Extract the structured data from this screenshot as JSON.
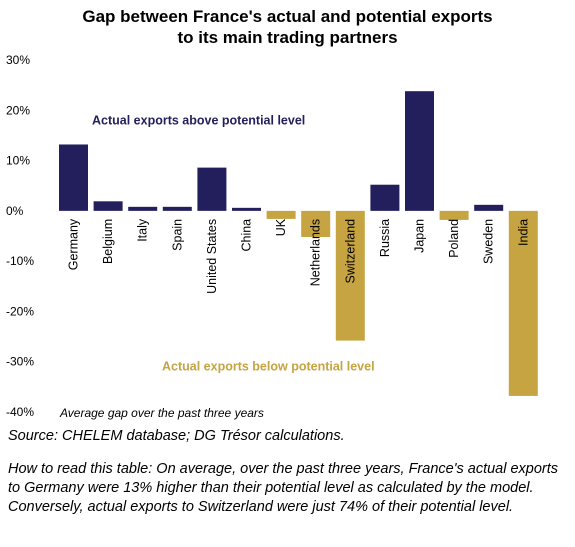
{
  "chart_data": {
    "type": "bar",
    "title_lines": [
      "Gap between France's actual and potential exports",
      "to its main trading partners"
    ],
    "categories": [
      "Germany",
      "Belgium",
      "Italy",
      "Spain",
      "United States",
      "China",
      "UK",
      "Netherlands",
      "Switzerland",
      "Russia",
      "Japan",
      "Poland",
      "Sweden",
      "India"
    ],
    "values": [
      13.2,
      1.9,
      0.8,
      0.8,
      8.6,
      0.6,
      -1.6,
      -5.2,
      -25.8,
      5.2,
      23.8,
      -1.8,
      1.2,
      -36.8
    ],
    "ylim": [
      -40,
      30
    ],
    "yticks": [
      -40,
      -30,
      -20,
      -10,
      0,
      10,
      20,
      30
    ],
    "ytick_labels": [
      "-40%",
      "-30%",
      "-20%",
      "-10%",
      "0%",
      "10%",
      "20%",
      "30%"
    ],
    "grid": false,
    "colors": {
      "positive": "#221f5c",
      "negative": "#c5a441"
    },
    "annotations": {
      "above": "Actual exports above potential level",
      "below": "Actual exports below potential level"
    }
  },
  "notes": {
    "period": "Average gap over the past three years",
    "source": "Source: CHELEM database; DG Trésor calculations.",
    "how_to_read": "How to read this table: On average, over the past three years, France's actual exports to Germany were 13% higher than their potential level as calculated by the model. Conversely, actual exports to Switzerland were just 74% of their potential level."
  }
}
